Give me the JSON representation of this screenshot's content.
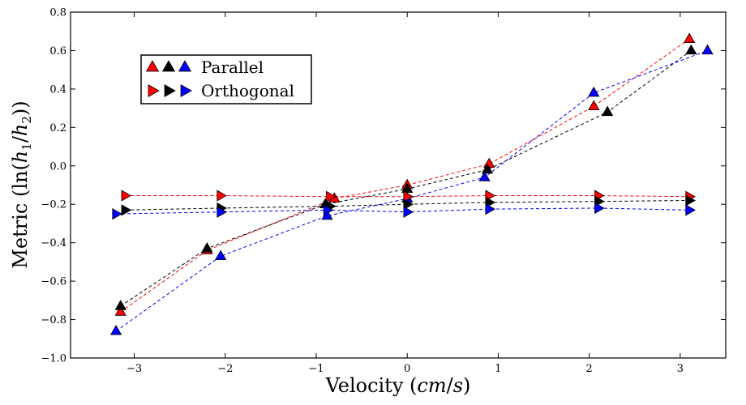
{
  "chart_data": {
    "type": "scatter",
    "title": "",
    "xlabel": "Velocity (cm/s)",
    "ylabel": "Metric (ln(h1/h2))",
    "xlim": [
      -3.7,
      3.5
    ],
    "ylim": [
      -1.0,
      0.8
    ],
    "xticks": [
      -3,
      -2,
      -1,
      0,
      1,
      2,
      3
    ],
    "xtick_labels": [
      "−3",
      "−2",
      "−1",
      "0",
      "1",
      "2",
      "3"
    ],
    "yticks": [
      -1.0,
      -0.8,
      -0.6,
      -0.4,
      -0.2,
      0.0,
      0.2,
      0.4,
      0.6,
      0.8
    ],
    "ytick_labels": [
      "−1.0",
      "−0.8",
      "−0.6",
      "−0.4",
      "−0.2",
      "0.0",
      "0.2",
      "0.4",
      "0.6",
      "0.8"
    ],
    "grid": false,
    "legend_placement": "upper-left",
    "legend": [
      {
        "label": "Parallel",
        "marker": "triangle-up"
      },
      {
        "label": "Orthogonal",
        "marker": "triangle-right"
      }
    ],
    "series": [
      {
        "group": "Parallel",
        "color": "#ff0000",
        "marker": "triangle-up",
        "x": [
          -3.15,
          -2.2,
          -0.8,
          0.0,
          0.9,
          2.05,
          3.1
        ],
        "y": [
          -0.76,
          -0.44,
          -0.17,
          -0.1,
          0.01,
          0.31,
          0.66
        ]
      },
      {
        "group": "Parallel",
        "color": "#000000",
        "marker": "triangle-up",
        "x": [
          -3.15,
          -2.2,
          -0.9,
          0.0,
          0.88,
          2.2,
          3.12
        ],
        "y": [
          -0.73,
          -0.43,
          -0.2,
          -0.12,
          -0.02,
          0.28,
          0.6
        ]
      },
      {
        "group": "Parallel",
        "color": "#0000ff",
        "marker": "triangle-up",
        "x": [
          -3.2,
          -2.05,
          -0.88,
          0.0,
          0.85,
          2.05,
          3.3
        ],
        "y": [
          -0.86,
          -0.47,
          -0.26,
          -0.17,
          -0.06,
          0.38,
          0.6
        ]
      },
      {
        "group": "Orthogonal",
        "color": "#ff0000",
        "marker": "triangle-right",
        "x": [
          -3.1,
          -2.05,
          -0.85,
          0.0,
          0.9,
          2.1,
          3.1
        ],
        "y": [
          -0.155,
          -0.155,
          -0.16,
          -0.16,
          -0.155,
          -0.155,
          -0.16
        ]
      },
      {
        "group": "Orthogonal",
        "color": "#000000",
        "marker": "triangle-right",
        "x": [
          -3.1,
          -2.05,
          -0.85,
          0.0,
          0.9,
          2.1,
          3.1
        ],
        "y": [
          -0.23,
          -0.22,
          -0.21,
          -0.2,
          -0.19,
          -0.185,
          -0.18
        ]
      },
      {
        "group": "Orthogonal",
        "color": "#0000ff",
        "marker": "triangle-right",
        "x": [
          -3.2,
          -2.05,
          -0.88,
          0.0,
          0.9,
          2.1,
          3.1
        ],
        "y": [
          -0.25,
          -0.24,
          -0.23,
          -0.24,
          -0.225,
          -0.22,
          -0.23
        ]
      }
    ]
  }
}
